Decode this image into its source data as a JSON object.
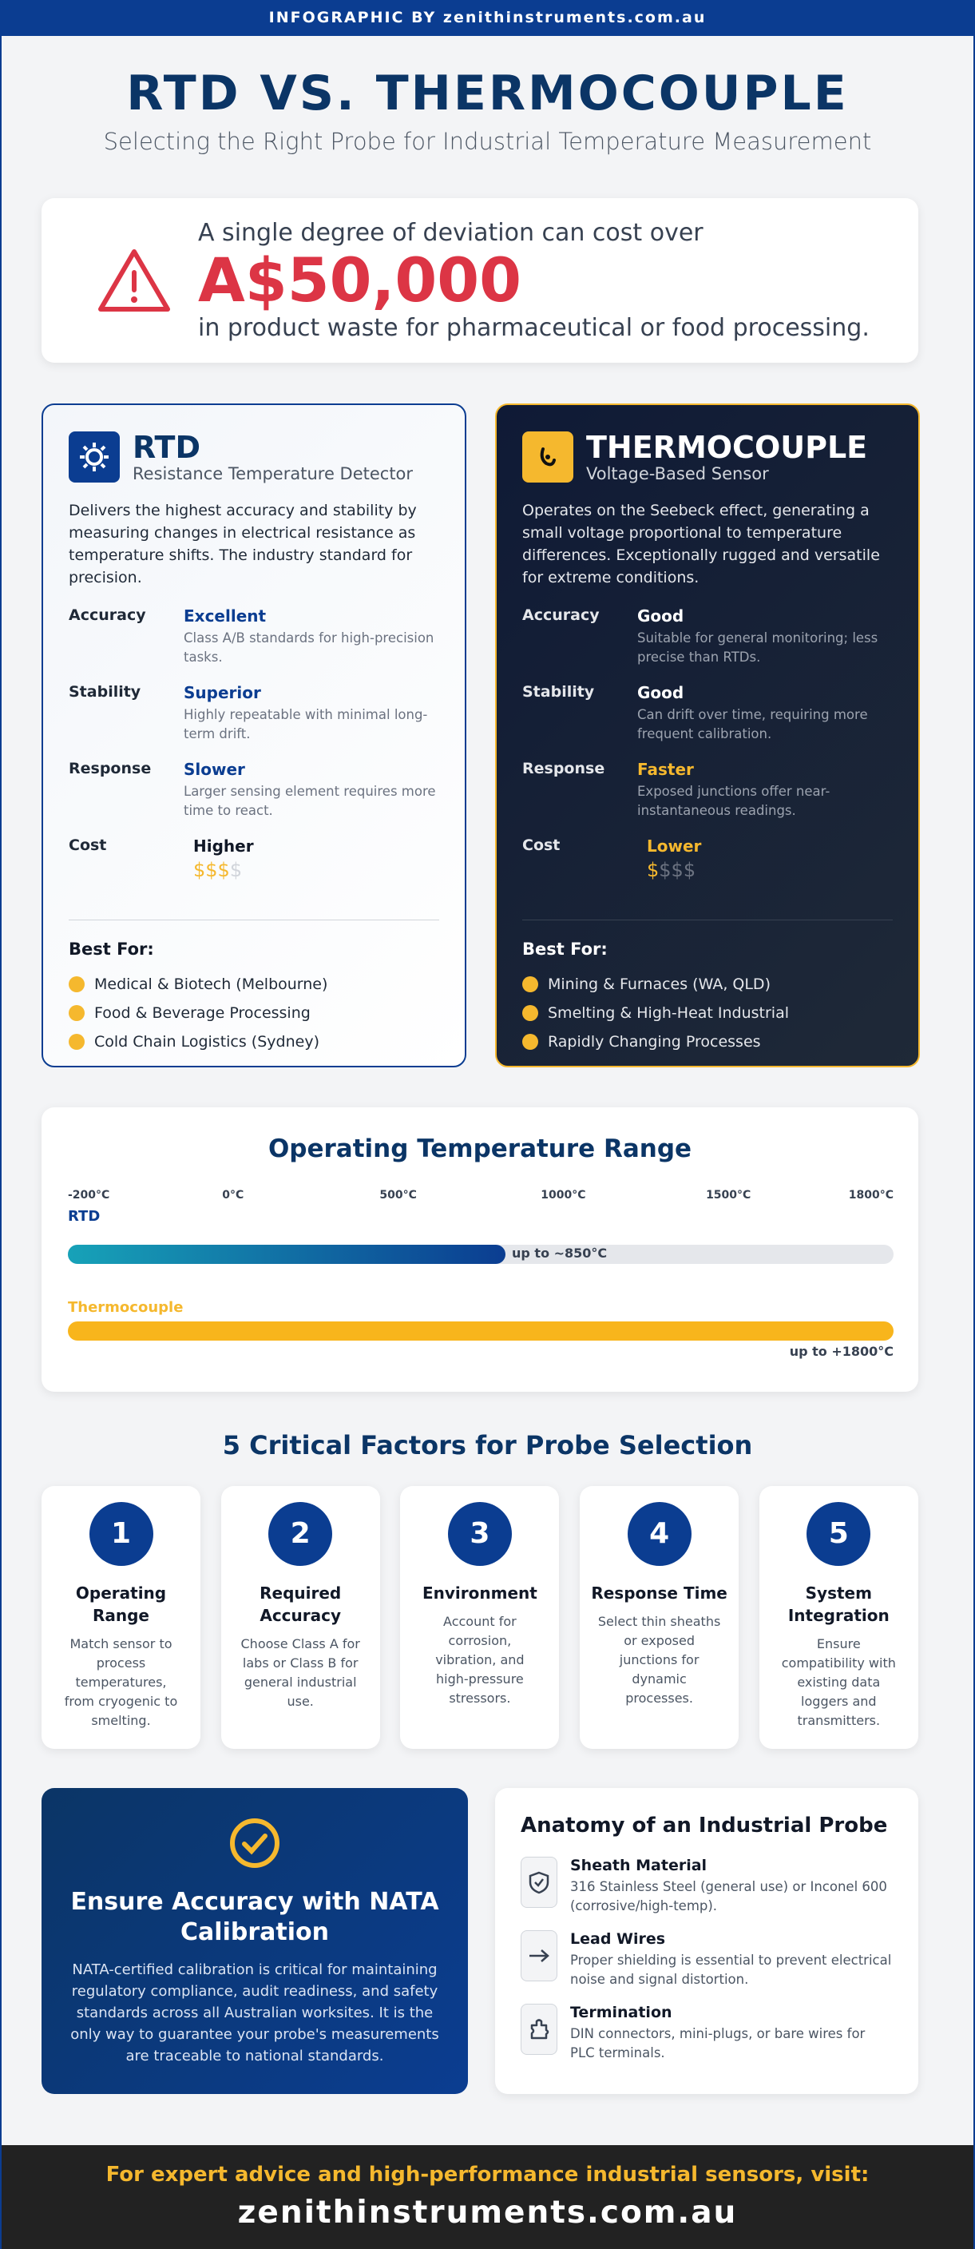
{
  "header": {
    "banner": "INFOGRAPHIC BY zenithinstruments.com.au",
    "title": "RTD VS. THERMOCOUPLE",
    "subtitle": "Selecting the Right Probe for Industrial Temperature Measurement"
  },
  "alert": {
    "line1": "A single degree of deviation can cost over",
    "amount": "A$50,000",
    "line2": "in product waste for pharmaceutical or food processing."
  },
  "rtd": {
    "name": "RTD",
    "subtitle": "Resistance Temperature Detector",
    "description": "Delivers the highest accuracy and stability by measuring changes in electrical resistance as temperature shifts. The industry standard for precision.",
    "rows": [
      {
        "label": "Accuracy",
        "rating": "Excellent",
        "note": "Class A/B standards for high-precision tasks."
      },
      {
        "label": "Stability",
        "rating": "Superior",
        "note": "Highly repeatable with minimal long-term drift."
      },
      {
        "label": "Response",
        "rating": "Slower",
        "note": "Larger sensing element requires more time to react."
      },
      {
        "label": "Cost",
        "rating": "Higher",
        "cost_on": "$$$",
        "cost_off": "$"
      }
    ],
    "best_for_title": "Best For:",
    "best_for": [
      "Medical & Biotech (Melbourne)",
      "Food & Beverage Processing",
      "Cold Chain Logistics (Sydney)"
    ]
  },
  "thermocouple": {
    "name": "THERMOCOUPLE",
    "subtitle": "Voltage-Based Sensor",
    "description": "Operates on the Seebeck effect, generating a small voltage proportional to temperature differences. Exceptionally rugged and versatile for extreme conditions.",
    "rows": [
      {
        "label": "Accuracy",
        "rating": "Good",
        "note": "Suitable for general monitoring; less precise than RTDs."
      },
      {
        "label": "Stability",
        "rating": "Good",
        "note": "Can drift over time, requiring more frequent calibration."
      },
      {
        "label": "Response",
        "rating": "Faster",
        "note": "Exposed junctions offer near-instantaneous readings."
      },
      {
        "label": "Cost",
        "rating": "Lower",
        "cost_on": "$",
        "cost_off": "$$$"
      }
    ],
    "best_for_title": "Best For:",
    "best_for": [
      "Mining & Furnaces (WA, QLD)",
      "Smelting & High-Heat Industrial",
      "Rapidly Changing Processes"
    ]
  },
  "range": {
    "title": "Operating Temperature Range",
    "ticks": [
      "-200°C",
      "0°C",
      "500°C",
      "1000°C",
      "1500°C",
      "1800°C"
    ],
    "rtd_label": "RTD",
    "rtd_note": "up to ~850°C",
    "tc_label": "Thermocouple",
    "tc_note": "up to +1800°C"
  },
  "factors": {
    "title": "5 Critical Factors for Probe Selection",
    "items": [
      {
        "number": 1,
        "title": "Operating Range",
        "text": "Match sensor to process temperatures, from cryogenic to smelting."
      },
      {
        "number": 2,
        "title": "Required Accuracy",
        "text": "Choose Class A for labs or Class B for general industrial use."
      },
      {
        "number": 3,
        "title": "Environment",
        "text": "Account for corrosion, vibration, and high-pressure stressors."
      },
      {
        "number": 4,
        "title": "Response Time",
        "text": "Select thin sheaths or exposed junctions for dynamic processes."
      },
      {
        "number": 5,
        "title": "System Integration",
        "text": "Ensure compatibility with existing data loggers and transmitters."
      }
    ]
  },
  "nata": {
    "title": "Ensure Accuracy with NATA Calibration",
    "text": "NATA-certified calibration is critical for maintaining regulatory compliance, audit readiness, and safety standards across all Australian worksites. It is the only way to guarantee your probe's measurements are traceable to national standards."
  },
  "anatomy": {
    "title": "Anatomy of an Industrial Probe",
    "items": [
      {
        "title": "Sheath Material",
        "text": "316 Stainless Steel (general use) or Inconel 600 (corrosive/high-temp)."
      },
      {
        "title": "Lead Wires",
        "text": "Proper shielding is essential to prevent electrical noise and signal distortion."
      },
      {
        "title": "Termination",
        "text": "DIN connectors, mini-plugs, or bare wires for PLC terminals."
      }
    ]
  },
  "footer": {
    "line1": "For expert advice and high-performance industrial sensors, visit:",
    "line2": "zenithinstruments.com.au"
  }
}
